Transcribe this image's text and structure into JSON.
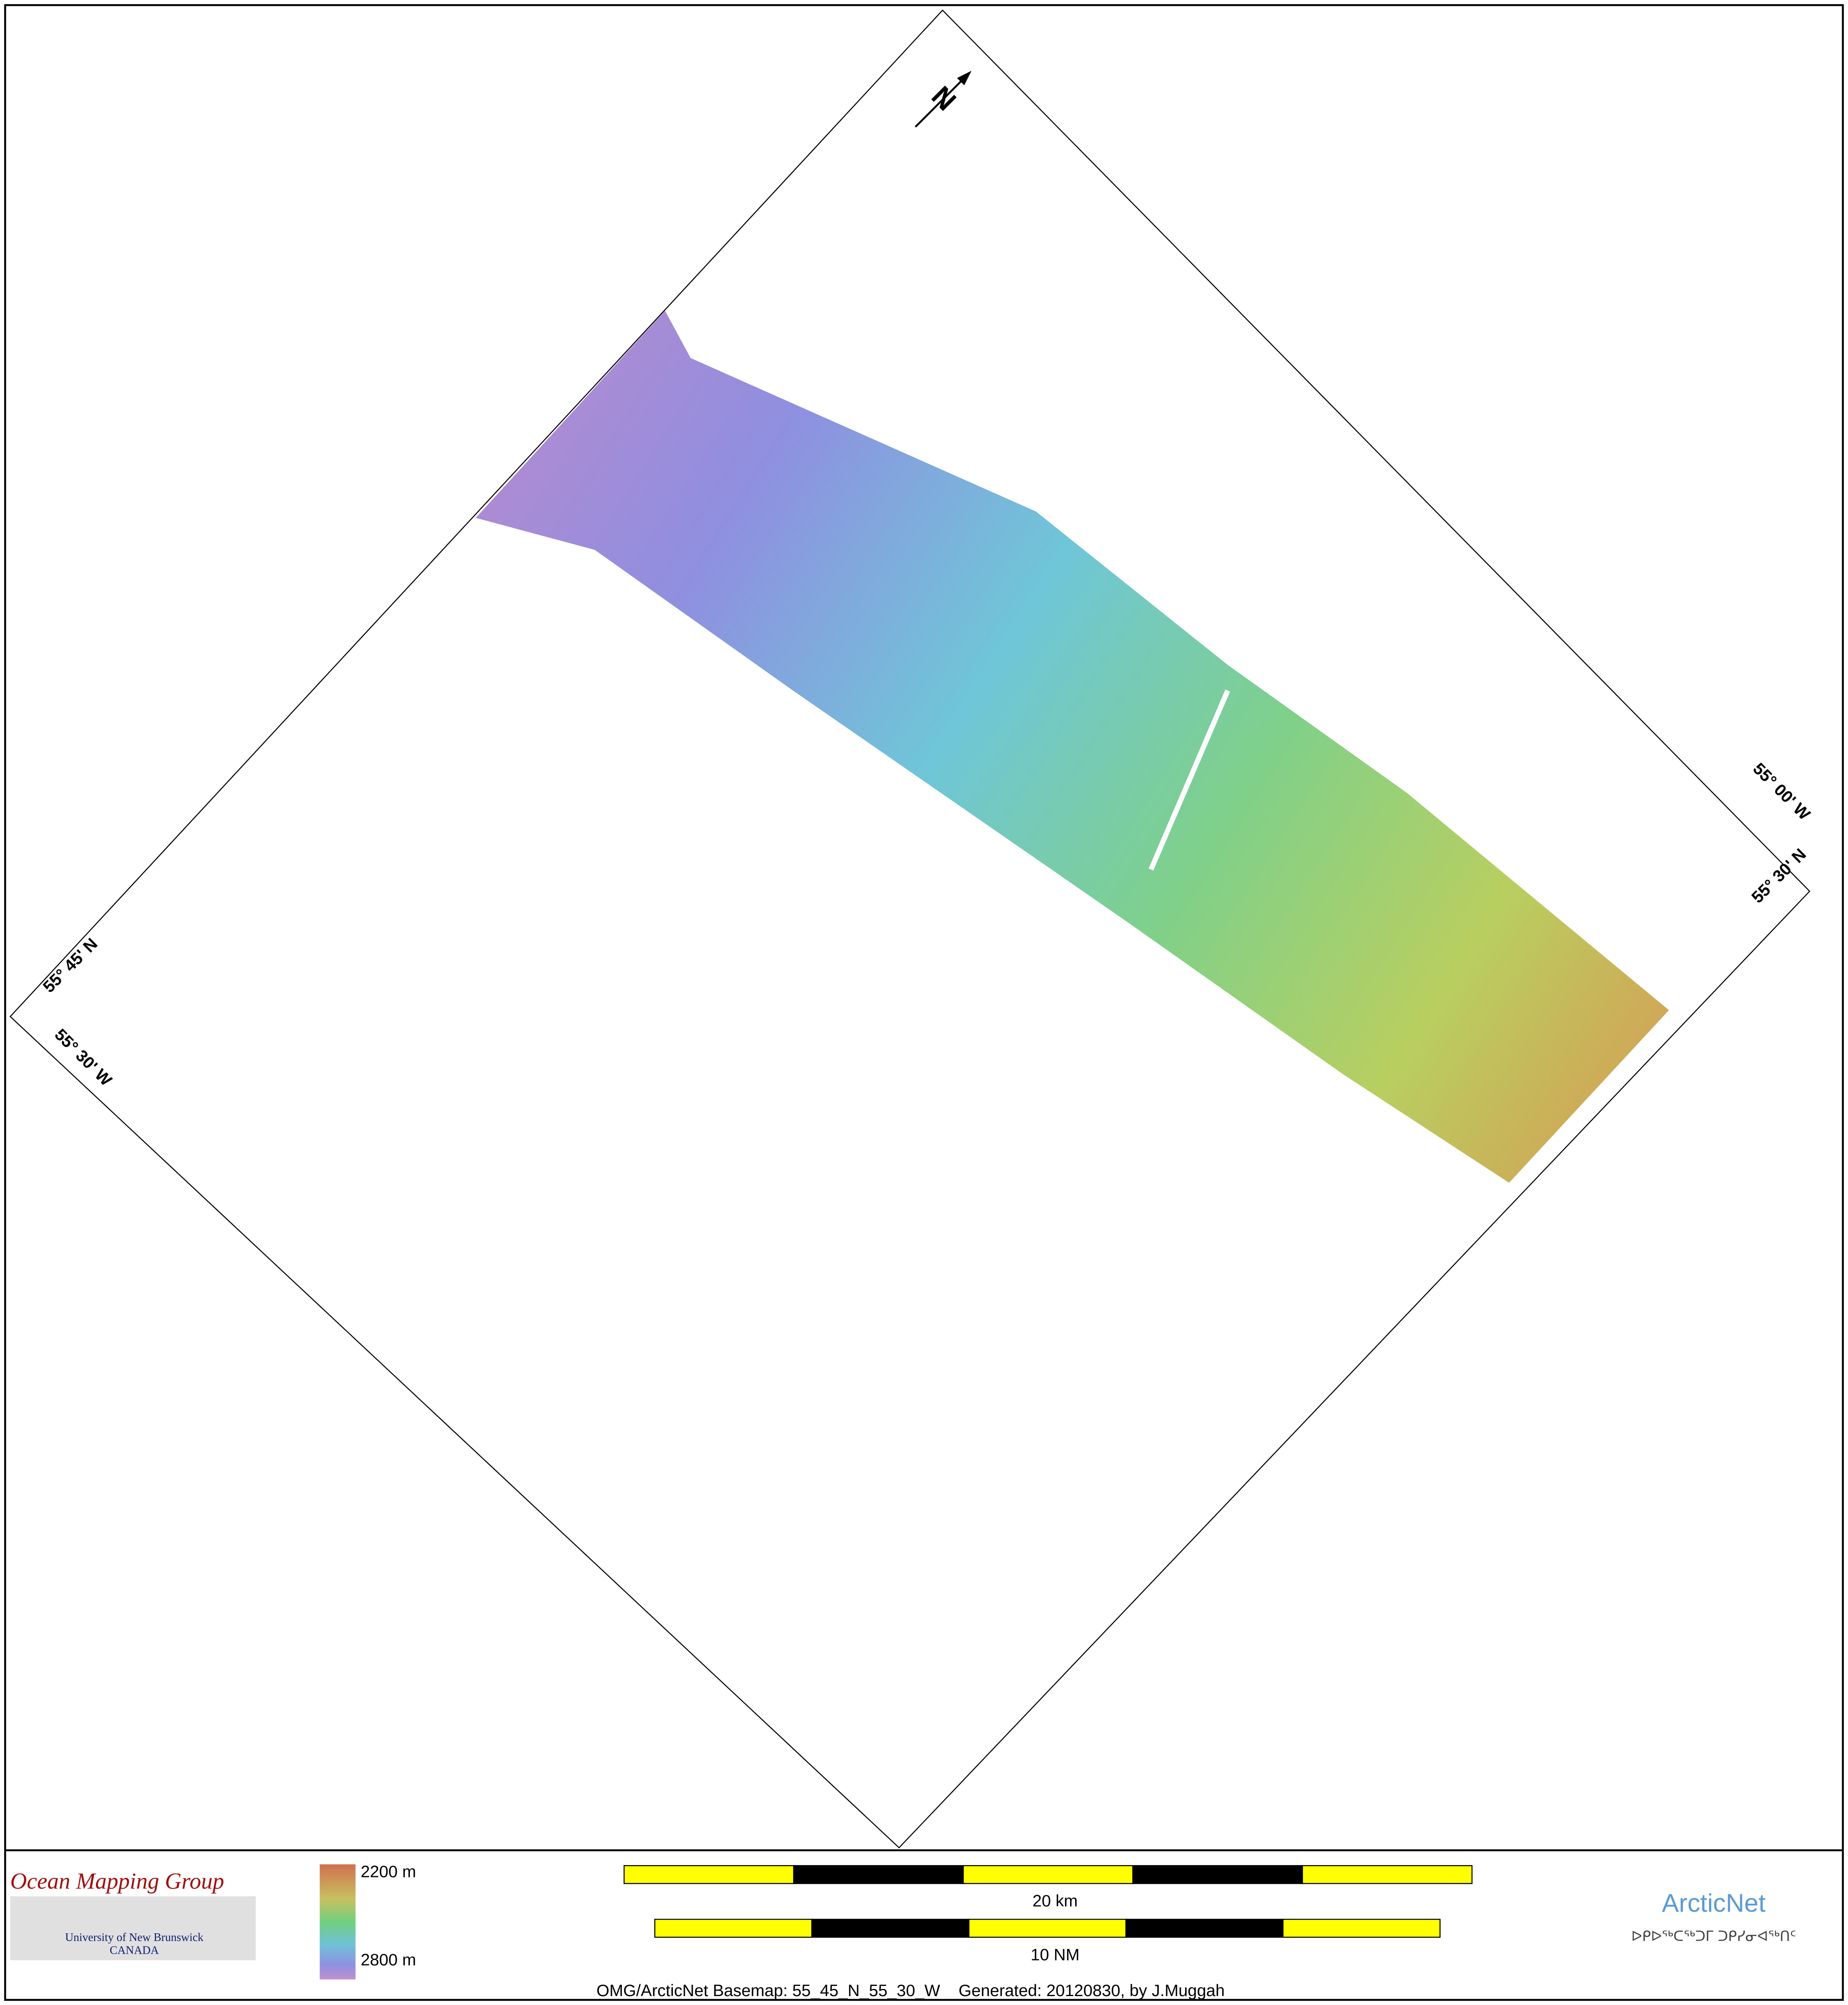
{
  "map": {
    "north_label": "N",
    "corner_labels": [
      "55° 00' W",
      "55° 30' N",
      "55° 45' N",
      "55° 30' W"
    ]
  },
  "legend": {
    "logo_title": "Ocean Mapping Group",
    "logo_line1": "University of New Brunswick",
    "logo_line2": "CANADA",
    "depth_top": "2200 m",
    "depth_bottom": "2800 m"
  },
  "scale": {
    "km_label": "20 km",
    "nm_label": "10 NM"
  },
  "arcticnet": {
    "name": "ArcticNet",
    "syllabics": "ᐅᑭᐅᖅᑕᖅᑐᒥ ᑐᑭᓯᓂᐊᖅᑎᑦ"
  },
  "footer": "OMG/ArcticNet Basemap: 55_45_N_55_30_W    Generated: 20120830, by J.Muggah"
}
